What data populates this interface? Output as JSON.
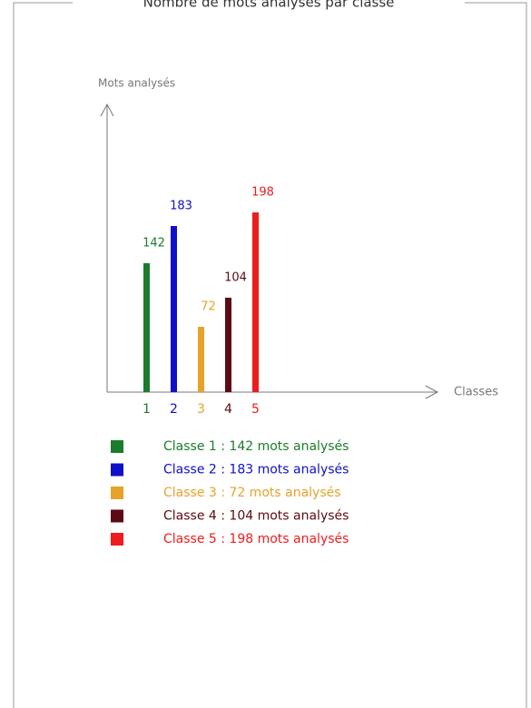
{
  "chart_data": {
    "type": "bar",
    "title": "Nombre de mots analysés par classe",
    "y_label": "Mots analysés",
    "x_label": "Classes",
    "categories": [
      "1",
      "2",
      "3",
      "4",
      "5"
    ],
    "values": [
      142,
      183,
      72,
      104,
      198
    ],
    "colors": [
      "#1b7d2a",
      "#1010c8",
      "#e8a22a",
      "#5c0a14",
      "#ee1c1c"
    ],
    "legend": [
      "Classe 1 : 142 mots analysés",
      "Classe 2 : 183 mots analysés",
      "Classe 3 : 72 mots analysés",
      "Classe 4 : 104 mots analysés",
      "Classe 5 : 198 mots analysés"
    ]
  }
}
